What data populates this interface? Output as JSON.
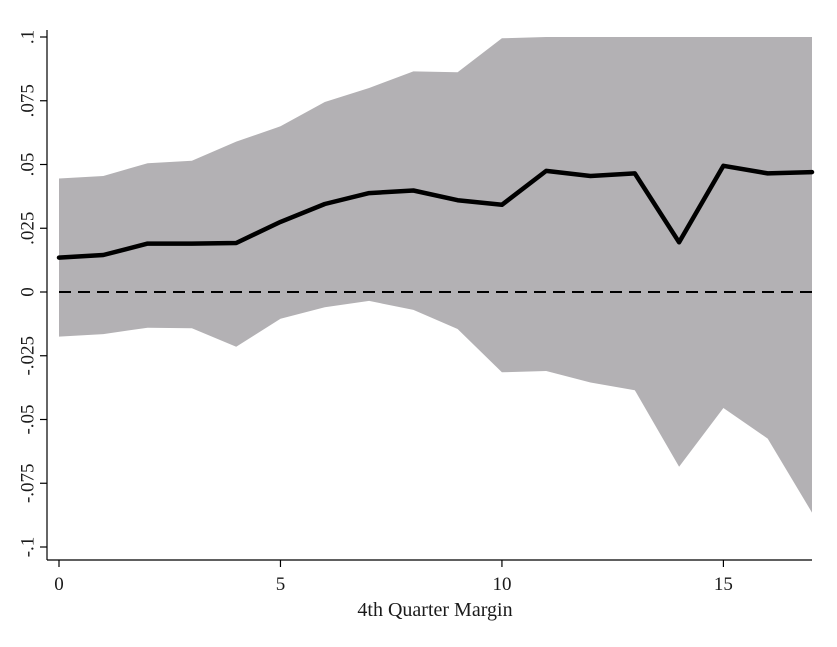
{
  "chart_data": {
    "type": "line",
    "title": "",
    "xlabel": "4th Quarter Margin",
    "ylabel": "",
    "xlim": [
      0,
      17
    ],
    "ylim": [
      -0.1,
      0.1
    ],
    "x_ticks": [
      0,
      5,
      10,
      15
    ],
    "x_tick_labels": [
      "0",
      "5",
      "10",
      "15"
    ],
    "y_ticks": [
      -0.1,
      -0.075,
      -0.05,
      -0.025,
      0,
      0.025,
      0.05,
      0.075,
      0.1
    ],
    "y_tick_labels": [
      "-.1",
      "-.075",
      "-.05",
      "-.025",
      "0",
      ".025",
      ".05",
      ".075",
      ".1"
    ],
    "grid": false,
    "legend": "none",
    "x": [
      0,
      1,
      2,
      3,
      4,
      5,
      6,
      7,
      8,
      9,
      10,
      11,
      12,
      13,
      14,
      15,
      16,
      17
    ],
    "series": [
      {
        "role": "point-estimate",
        "values": [
          0.0135,
          0.0145,
          0.019,
          0.019,
          0.0192,
          0.0275,
          0.0345,
          0.0388,
          0.0398,
          0.036,
          0.0342,
          0.0475,
          0.0455,
          0.0465,
          0.0195,
          0.0495,
          0.0465,
          0.047
        ],
        "color": "#000000"
      }
    ],
    "confidence_band": {
      "upper": [
        0.0445,
        0.0455,
        0.0505,
        0.0515,
        0.059,
        0.065,
        0.0745,
        0.08,
        0.0865,
        0.0862,
        0.0995,
        0.1,
        0.1,
        0.1,
        0.1,
        0.1,
        0.1,
        0.1
      ],
      "lower": [
        -0.0175,
        -0.0165,
        -0.014,
        -0.0142,
        -0.0215,
        -0.0105,
        -0.006,
        -0.0035,
        -0.007,
        -0.0145,
        -0.0315,
        -0.031,
        -0.0355,
        -0.0385,
        -0.0685,
        -0.0455,
        -0.0575,
        -0.0865
      ],
      "color": "#b3b1b4"
    },
    "reference_line": {
      "y": 0,
      "style": "dashed",
      "color": "#000000"
    }
  }
}
